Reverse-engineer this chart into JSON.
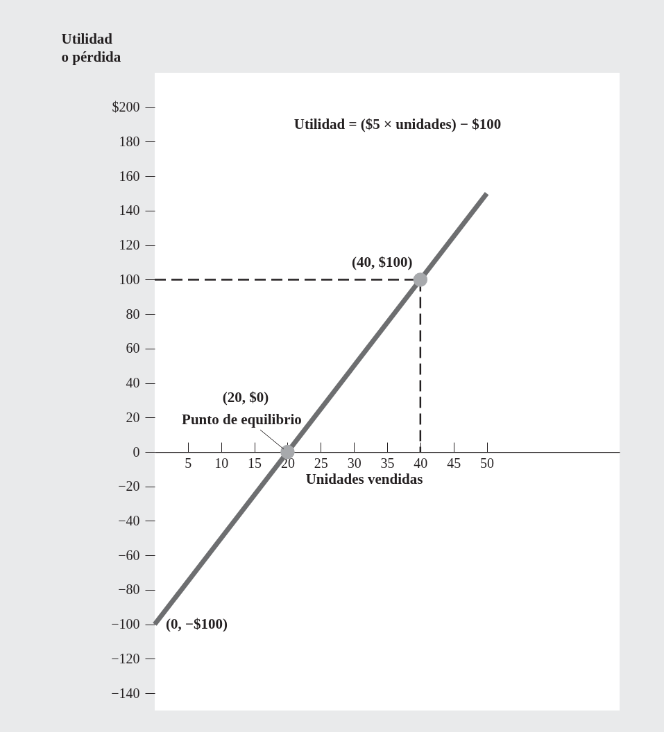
{
  "chart_data": {
    "type": "line",
    "xlabel": "Unidades vendidas",
    "ylabel": "Utilidad o pérdida",
    "xlim": [
      0,
      70
    ],
    "xticks": [
      5,
      10,
      15,
      20,
      25,
      30,
      35,
      40,
      45,
      50
    ],
    "ylim": [
      -150,
      220
    ],
    "yticks": [
      {
        "value": 200,
        "label": "$200"
      },
      180,
      160,
      140,
      120,
      100,
      80,
      60,
      40,
      20,
      0,
      {
        "value": -20,
        "label": "−20"
      },
      {
        "value": -40,
        "label": "−40"
      },
      {
        "value": -60,
        "label": "−60"
      },
      {
        "value": -80,
        "label": "−80"
      },
      {
        "value": -100,
        "label": "−100"
      },
      {
        "value": -120,
        "label": "−120"
      },
      {
        "value": -140,
        "label": "−140"
      }
    ],
    "series": [
      {
        "color": "#6d6e70",
        "x": [
          0,
          50
        ],
        "values": [
          -100,
          150
        ]
      },
      {
        "color": "#231f20",
        "line_style": "dashed",
        "x": [
          0,
          40,
          40
        ],
        "values": [
          100,
          100,
          0
        ]
      },
      {
        "type": "scatter",
        "color": "#a7a9ac",
        "marker": "circle",
        "x": [
          20,
          40
        ],
        "values": [
          0,
          100
        ]
      }
    ],
    "annotations": [
      "Utilidad = ($5 × unidades) − $100",
      {
        "text": "(40, $100)",
        "x": 40,
        "y": 100
      },
      "(20, $0)",
      {
        "text": "Punto de equilibrio",
        "x": 20,
        "y": 0
      },
      {
        "text": "(0, −$100)",
        "x": 0,
        "y": -100
      }
    ]
  }
}
